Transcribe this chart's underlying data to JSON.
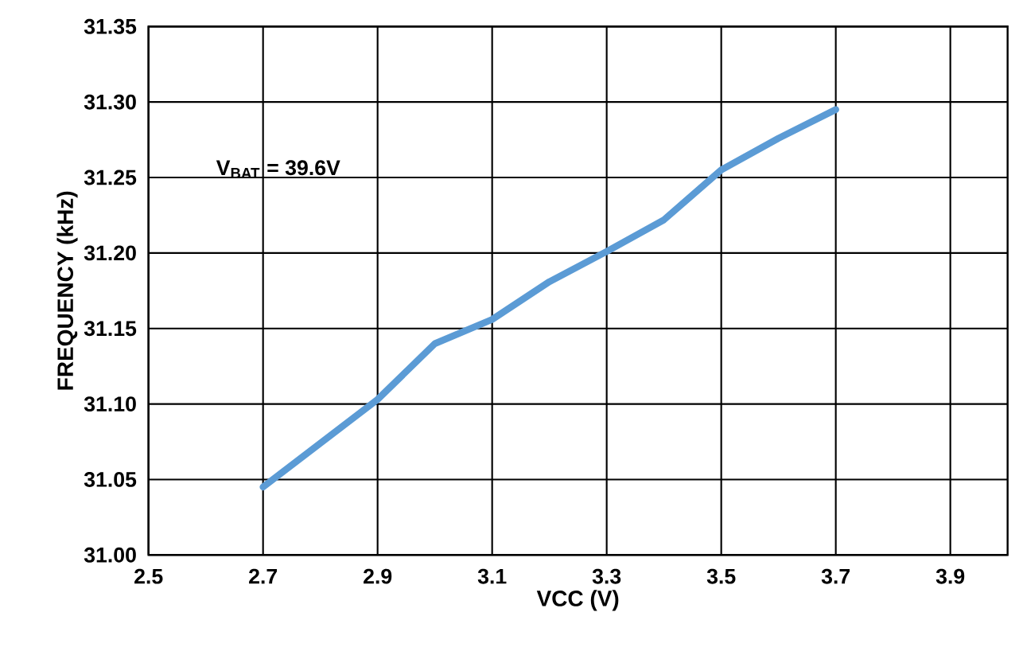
{
  "chart_data": {
    "type": "line",
    "xlabel": "VCC (V)",
    "ylabel": "FREQUENCY (kHz)",
    "x": [
      2.7,
      2.8,
      2.9,
      3.0,
      3.1,
      3.2,
      3.3,
      3.4,
      3.5,
      3.6,
      3.7
    ],
    "series": [
      {
        "color": "#5b9bd5",
        "values": [
          31.045,
          31.074,
          31.103,
          31.14,
          31.156,
          31.181,
          31.201,
          31.222,
          31.255,
          31.276,
          31.295
        ]
      }
    ],
    "xlim": [
      2.5,
      4.0
    ],
    "ylim": [
      31.0,
      31.35
    ],
    "xticks": [
      2.5,
      2.7,
      2.9,
      3.1,
      3.3,
      3.5,
      3.7,
      3.9
    ],
    "yticks": [
      {
        "value": 31.0,
        "label": "31.00"
      },
      {
        "value": 31.05,
        "label": "31.05"
      },
      {
        "value": 31.1,
        "label": "31.10"
      },
      {
        "value": 31.15,
        "label": "31.15"
      },
      {
        "value": 31.2,
        "label": "31.20"
      },
      {
        "value": 31.25,
        "label": "31.25"
      },
      {
        "value": 31.3,
        "label": "31.30"
      },
      {
        "value": 31.35,
        "label": "31.35"
      }
    ],
    "annotations": [
      "V$_{BAT}$ = 39.6V"
    ],
    "grid": true,
    "marker": "none",
    "line_style": "solid"
  }
}
